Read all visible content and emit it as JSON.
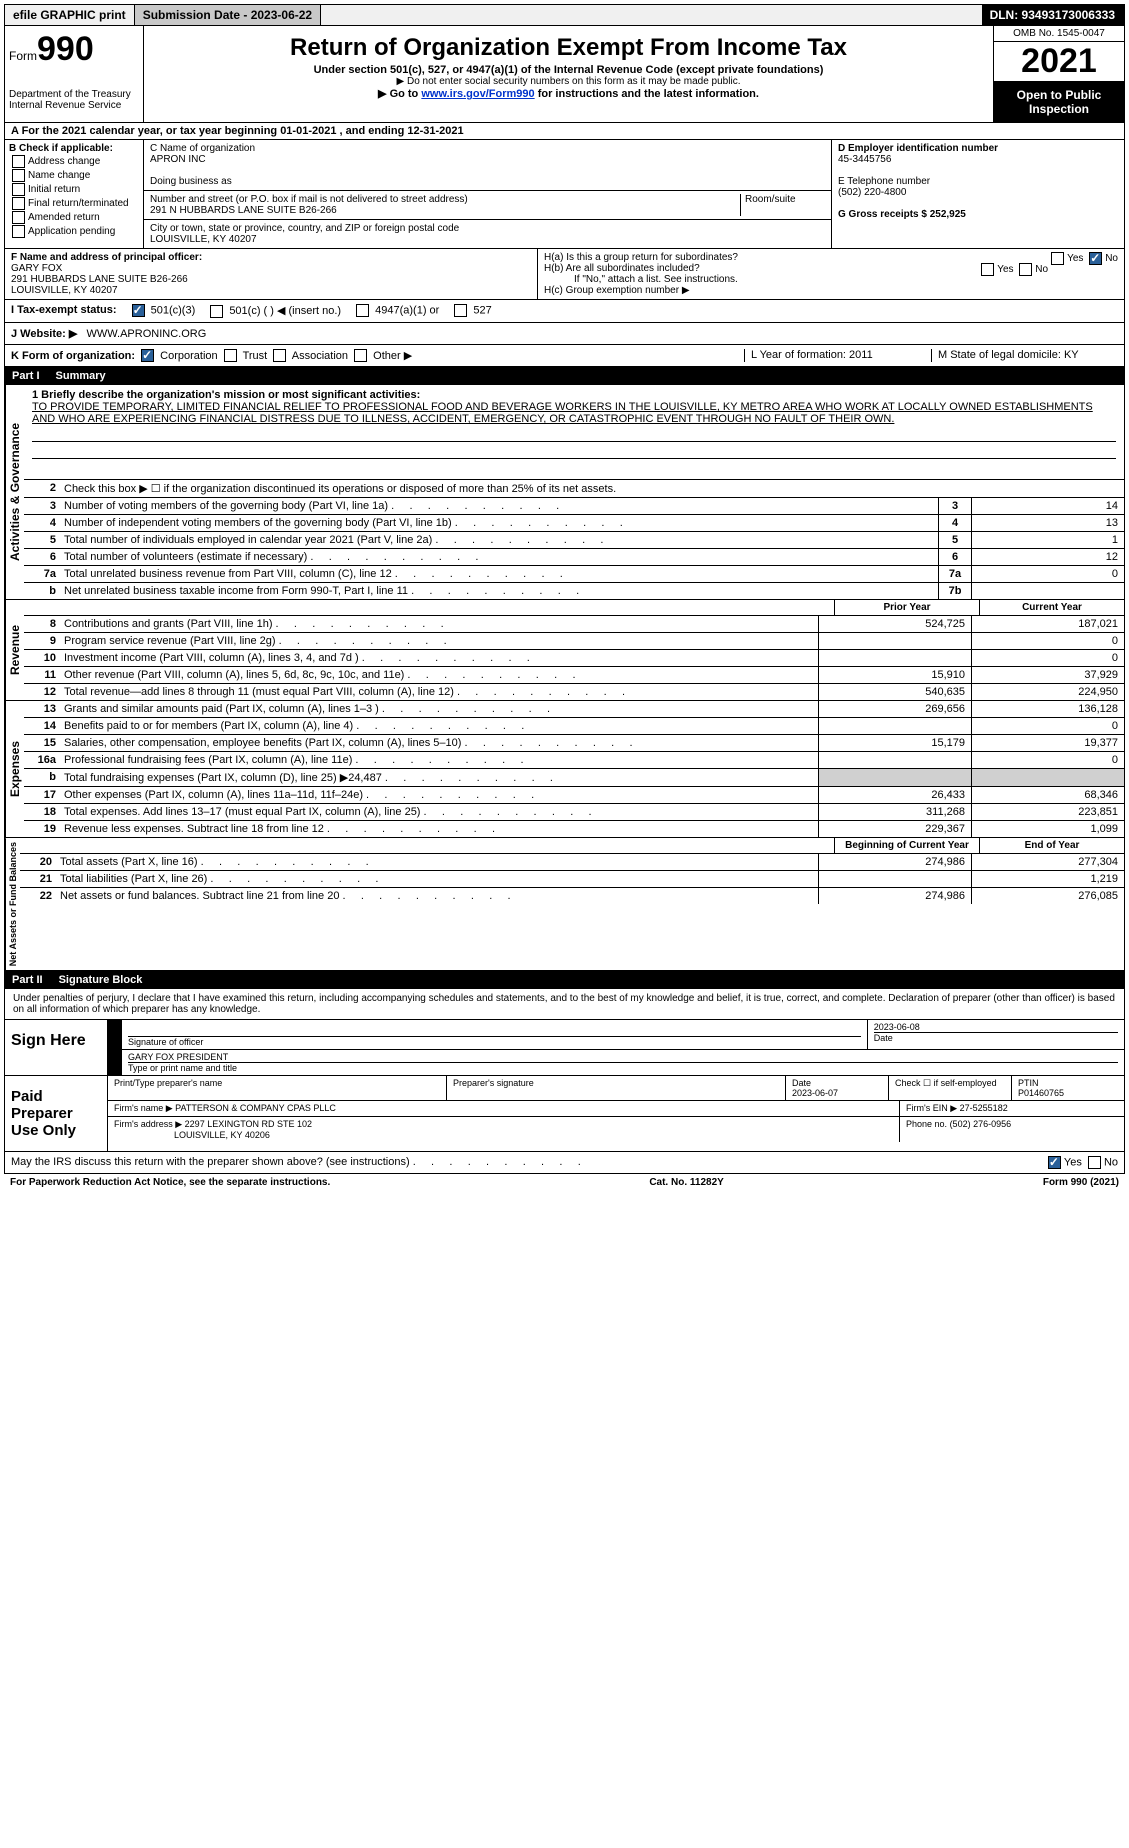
{
  "topbar": {
    "efile": "efile GRAPHIC print",
    "submission": "Submission Date - 2023-06-22",
    "dln_label": "DLN: 93493173006333"
  },
  "header": {
    "form_label": "Form",
    "form_number": "990",
    "dept": "Department of the Treasury",
    "irs": "Internal Revenue Service",
    "title": "Return of Organization Exempt From Income Tax",
    "sub1": "Under section 501(c), 527, or 4947(a)(1) of the Internal Revenue Code (except private foundations)",
    "sub2": "▶ Do not enter social security numbers on this form as it may be made public.",
    "sub3_pre": "▶ Go to ",
    "sub3_link": "www.irs.gov/Form990",
    "sub3_post": " for instructions and the latest information.",
    "omb": "OMB No. 1545-0047",
    "year": "2021",
    "open": "Open to Public Inspection"
  },
  "row_A": "A For the 2021 calendar year, or tax year beginning 01-01-2021     , and ending 12-31-2021",
  "col_B": {
    "title": "B Check if applicable:",
    "items": [
      "Address change",
      "Name change",
      "Initial return",
      "Final return/terminated",
      "Amended return",
      "Application pending"
    ]
  },
  "col_C": {
    "name_label": "C Name of organization",
    "name": "APRON INC",
    "dba_label": "Doing business as",
    "street_label": "Number and street (or P.O. box if mail is not delivered to street address)",
    "room_label": "Room/suite",
    "street": "291 N HUBBARDS LANE SUITE B26-266",
    "city_label": "City or town, state or province, country, and ZIP or foreign postal code",
    "city": "LOUISVILLE, KY  40207"
  },
  "col_DEG": {
    "d_label": "D Employer identification number",
    "d_val": "45-3445756",
    "e_label": "E Telephone number",
    "e_val": "(502) 220-4800",
    "g_label": "G Gross receipts $ 252,925"
  },
  "row_F": {
    "label": "F Name and address of principal officer:",
    "name": "GARY FOX",
    "street": "291 HUBBARDS LANE SUITE B26-266",
    "city": "LOUISVILLE, KY  40207"
  },
  "row_H": {
    "ha": "H(a)  Is this a group return for subordinates?",
    "hb": "H(b)  Are all subordinates included?",
    "hnote": "If \"No,\" attach a list. See instructions.",
    "hc": "H(c)  Group exemption number ▶",
    "yes": "Yes",
    "no": "No"
  },
  "row_I": {
    "label": "I     Tax-exempt status:",
    "opts": [
      "501(c)(3)",
      "501(c) (  ) ◀ (insert no.)",
      "4947(a)(1) or",
      "527"
    ]
  },
  "row_J": {
    "label": "J    Website: ▶",
    "val": "WWW.APRONINC.ORG"
  },
  "row_K": {
    "label": "K Form of organization:",
    "opts": [
      "Corporation",
      "Trust",
      "Association",
      "Other ▶"
    ],
    "l_label": "L Year of formation: 2011",
    "m_label": "M State of legal domicile: KY"
  },
  "part1": {
    "header_num": "Part I",
    "header_title": "Summary",
    "q1_label": "1   Briefly describe the organization's mission or most significant activities:",
    "q1_text": "TO PROVIDE TEMPORARY, LIMITED FINANCIAL RELIEF TO PROFESSIONAL FOOD AND BEVERAGE WORKERS IN THE LOUISVILLE, KY METRO AREA WHO WORK AT LOCALLY OWNED ESTABLISHMENTS AND WHO ARE EXPERIENCING FINANCIAL DISTRESS DUE TO ILLNESS, ACCIDENT, EMERGENCY, OR CATASTROPHIC EVENT THROUGH NO FAULT OF THEIR OWN.",
    "q2": "Check this box ▶ ☐  if the organization discontinued its operations or disposed of more than 25% of its net assets.",
    "governance_label": "Activities & Governance",
    "revenue_label": "Revenue",
    "expenses_label": "Expenses",
    "netassets_label": "Net Assets or Fund Balances",
    "prior_year": "Prior Year",
    "current_year": "Current Year",
    "begin_year": "Beginning of Current Year",
    "end_year": "End of Year",
    "rows_gov": [
      {
        "n": "3",
        "t": "Number of voting members of the governing body (Part VI, line 1a)",
        "box": "3",
        "v": "14"
      },
      {
        "n": "4",
        "t": "Number of independent voting members of the governing body (Part VI, line 1b)",
        "box": "4",
        "v": "13"
      },
      {
        "n": "5",
        "t": "Total number of individuals employed in calendar year 2021 (Part V, line 2a)",
        "box": "5",
        "v": "1"
      },
      {
        "n": "6",
        "t": "Total number of volunteers (estimate if necessary)",
        "box": "6",
        "v": "12"
      },
      {
        "n": "7a",
        "t": "Total unrelated business revenue from Part VIII, column (C), line 12",
        "box": "7a",
        "v": "0"
      },
      {
        "n": "b",
        "t": "Net unrelated business taxable income from Form 990-T, Part I, line 11",
        "box": "7b",
        "v": ""
      }
    ],
    "rows_rev": [
      {
        "n": "8",
        "t": "Contributions and grants (Part VIII, line 1h)",
        "py": "524,725",
        "cy": "187,021"
      },
      {
        "n": "9",
        "t": "Program service revenue (Part VIII, line 2g)",
        "py": "",
        "cy": "0"
      },
      {
        "n": "10",
        "t": "Investment income (Part VIII, column (A), lines 3, 4, and 7d )",
        "py": "",
        "cy": "0"
      },
      {
        "n": "11",
        "t": "Other revenue (Part VIII, column (A), lines 5, 6d, 8c, 9c, 10c, and 11e)",
        "py": "15,910",
        "cy": "37,929"
      },
      {
        "n": "12",
        "t": "Total revenue—add lines 8 through 11 (must equal Part VIII, column (A), line 12)",
        "py": "540,635",
        "cy": "224,950"
      }
    ],
    "rows_exp": [
      {
        "n": "13",
        "t": "Grants and similar amounts paid (Part IX, column (A), lines 1–3 )",
        "py": "269,656",
        "cy": "136,128"
      },
      {
        "n": "14",
        "t": "Benefits paid to or for members (Part IX, column (A), line 4)",
        "py": "",
        "cy": "0"
      },
      {
        "n": "15",
        "t": "Salaries, other compensation, employee benefits (Part IX, column (A), lines 5–10)",
        "py": "15,179",
        "cy": "19,377"
      },
      {
        "n": "16a",
        "t": "Professional fundraising fees (Part IX, column (A), line 11e)",
        "py": "",
        "cy": "0"
      },
      {
        "n": "b",
        "t": "Total fundraising expenses (Part IX, column (D), line 25) ▶24,487",
        "py": "shade",
        "cy": "shade"
      },
      {
        "n": "17",
        "t": "Other expenses (Part IX, column (A), lines 11a–11d, 11f–24e)",
        "py": "26,433",
        "cy": "68,346"
      },
      {
        "n": "18",
        "t": "Total expenses. Add lines 13–17 (must equal Part IX, column (A), line 25)",
        "py": "311,268",
        "cy": "223,851"
      },
      {
        "n": "19",
        "t": "Revenue less expenses. Subtract line 18 from line 12",
        "py": "229,367",
        "cy": "1,099"
      }
    ],
    "rows_net": [
      {
        "n": "20",
        "t": "Total assets (Part X, line 16)",
        "py": "274,986",
        "cy": "277,304"
      },
      {
        "n": "21",
        "t": "Total liabilities (Part X, line 26)",
        "py": "",
        "cy": "1,219"
      },
      {
        "n": "22",
        "t": "Net assets or fund balances. Subtract line 21 from line 20",
        "py": "274,986",
        "cy": "276,085"
      }
    ]
  },
  "part2": {
    "header_num": "Part II",
    "header_title": "Signature Block",
    "declaration": "Under penalties of perjury, I declare that I have examined this return, including accompanying schedules and statements, and to the best of my knowledge and belief, it is true, correct, and complete. Declaration of preparer (other than officer) is based on all information of which preparer has any knowledge."
  },
  "sign": {
    "label": "Sign Here",
    "sig_officer": "Signature of officer",
    "date_label": "Date",
    "date_val": "2023-06-08",
    "name_val": "GARY FOX  PRESIDENT",
    "name_label": "Type or print name and title"
  },
  "preparer": {
    "label": "Paid Preparer Use Only",
    "col1": "Print/Type preparer's name",
    "col2": "Preparer's signature",
    "col3_label": "Date",
    "col3_val": "2023-06-07",
    "col4": "Check ☐ if self-employed",
    "col5_label": "PTIN",
    "col5_val": "P01460765",
    "firm_name_label": "Firm's name      ▶",
    "firm_name": "PATTERSON & COMPANY CPAS PLLC",
    "firm_ein_label": "Firm's EIN ▶",
    "firm_ein": "27-5255182",
    "firm_addr_label": "Firm's address ▶",
    "firm_addr1": "2297 LEXINGTON RD STE 102",
    "firm_addr2": "LOUISVILLE, KY  40206",
    "phone_label": "Phone no.",
    "phone": "(502) 276-0956"
  },
  "discuss": {
    "q": "May the IRS discuss this return with the preparer shown above? (see instructions)",
    "yes": "Yes",
    "no": "No"
  },
  "footer": {
    "left": "For Paperwork Reduction Act Notice, see the separate instructions.",
    "mid": "Cat. No. 11282Y",
    "right": "Form 990 (2021)"
  }
}
